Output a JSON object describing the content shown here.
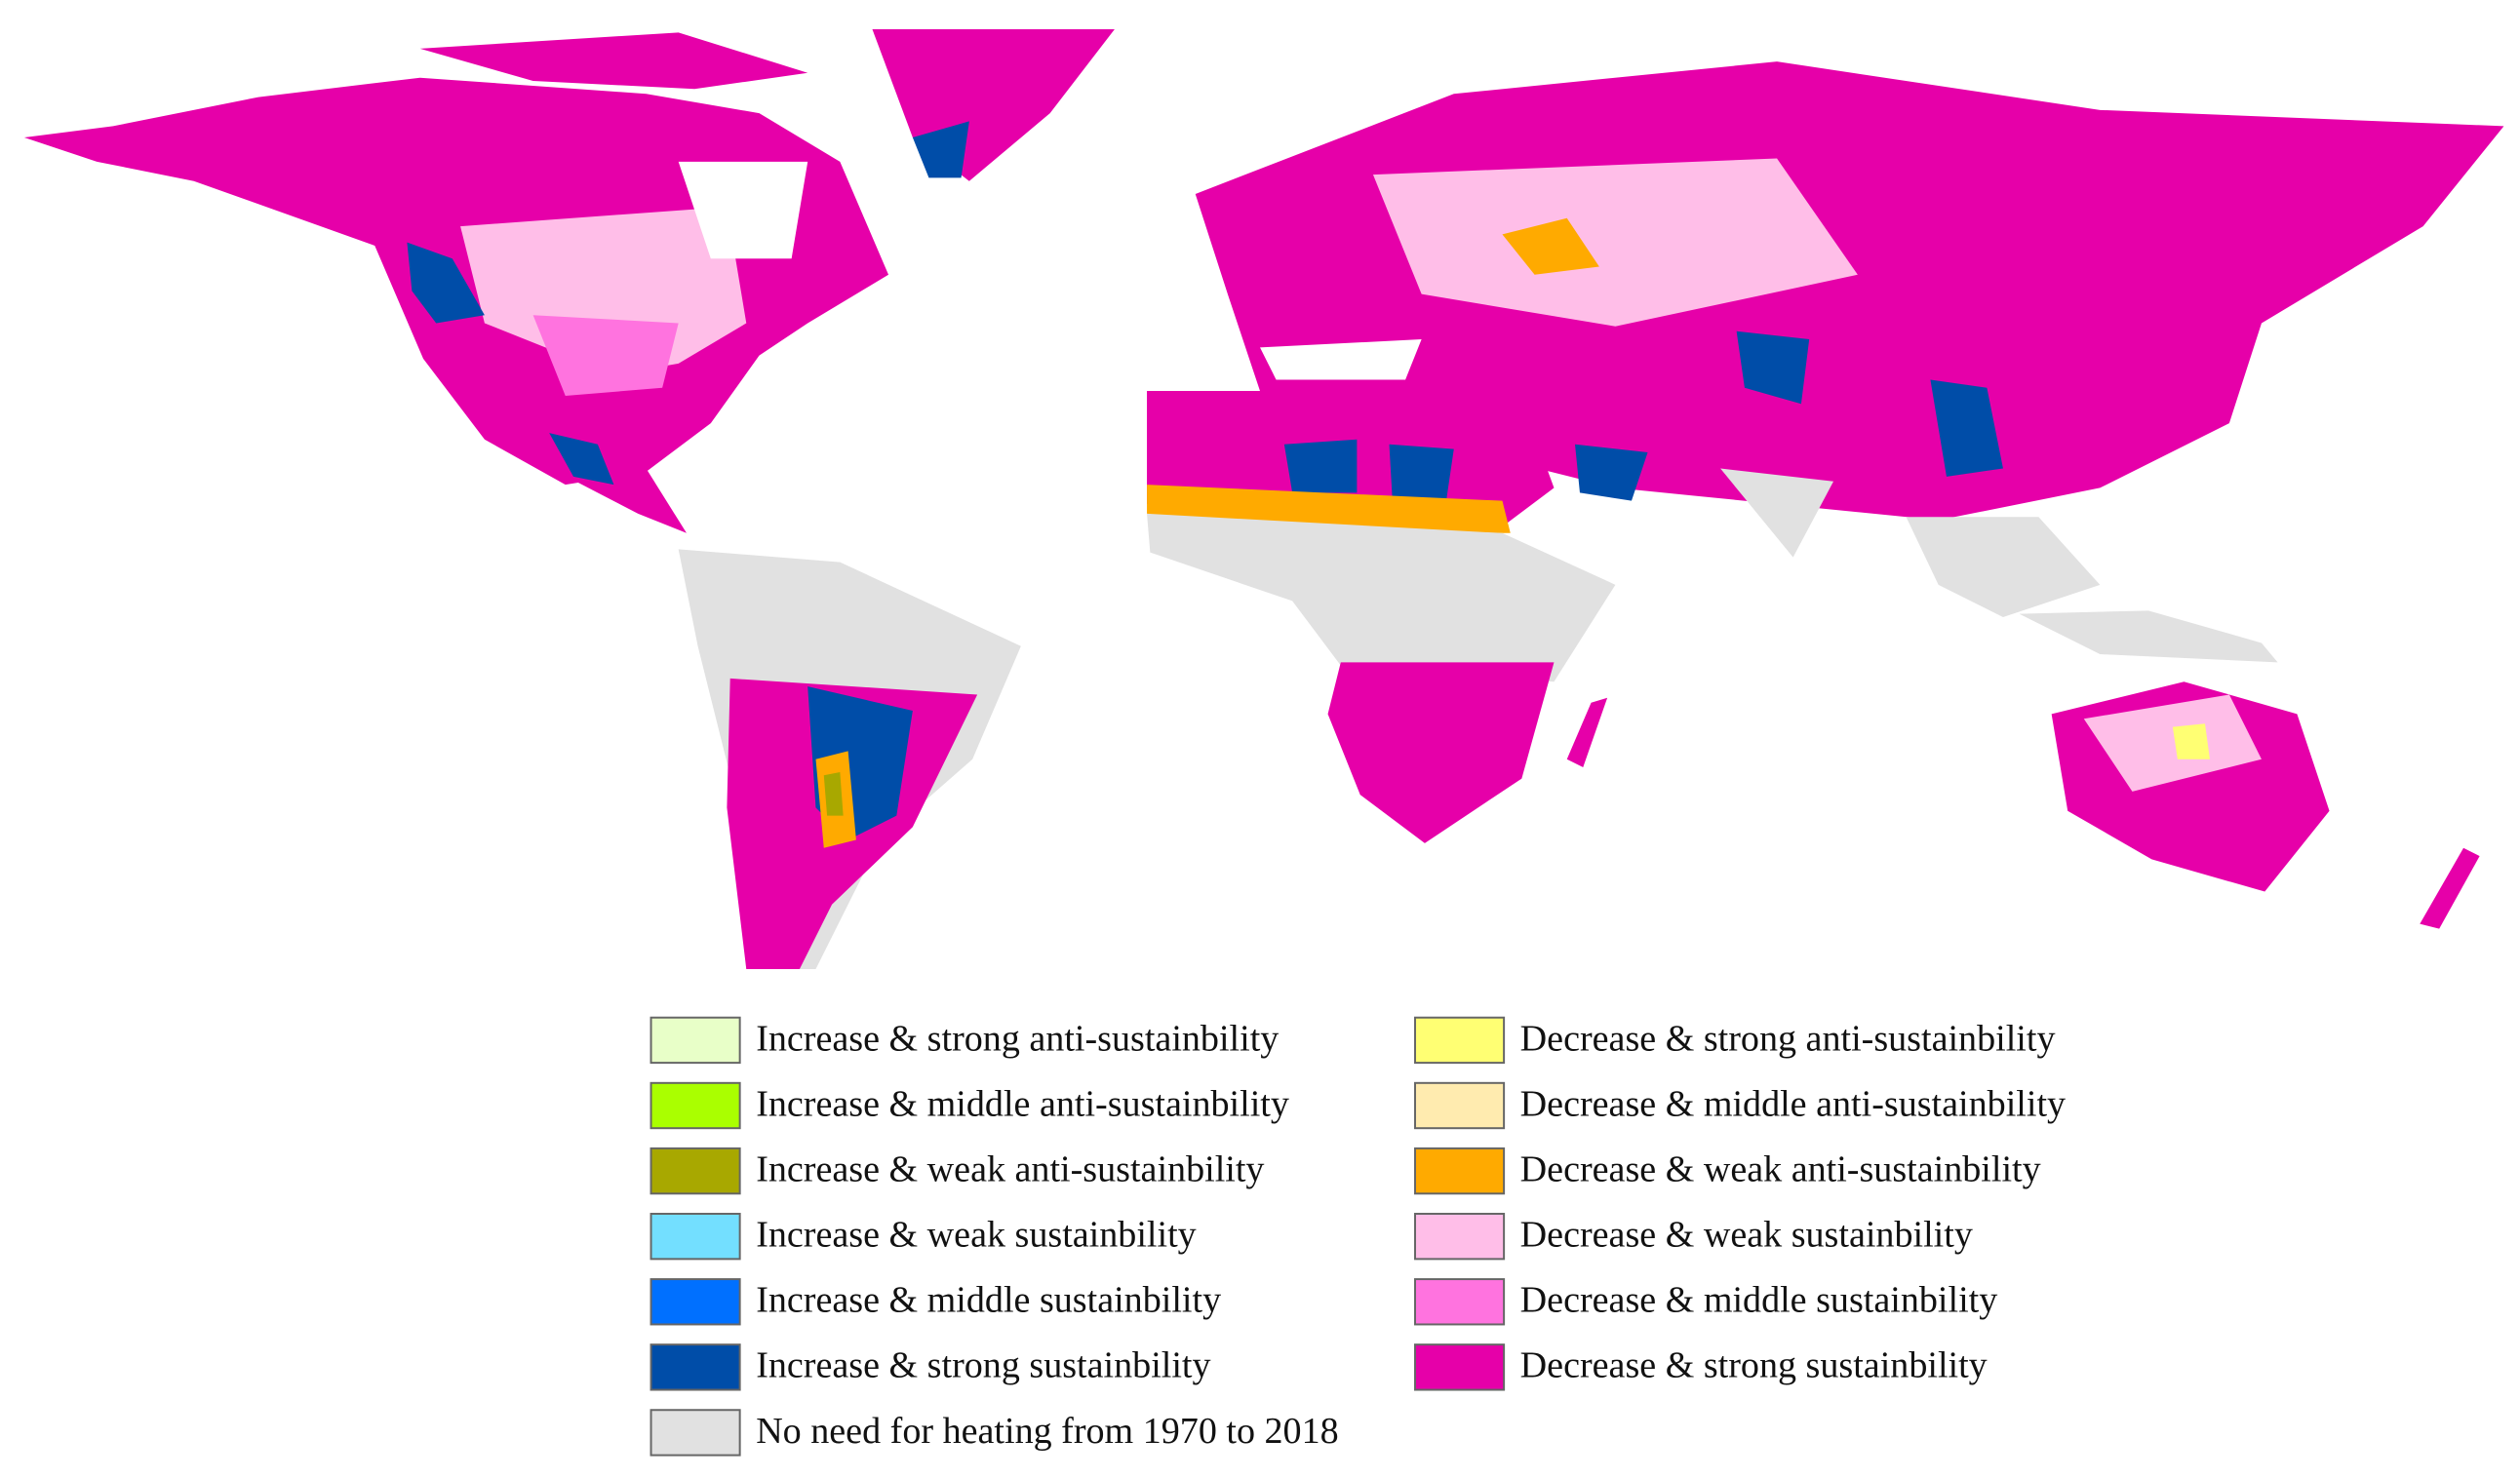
{
  "legend": {
    "items": [
      {
        "label": "Increase & strong anti-sustainbility",
        "color": "#e8ffc8"
      },
      {
        "label": "Decrease & strong anti-sustainbility",
        "color": "#ffff73"
      },
      {
        "label": "Increase & middle anti-sustainbility",
        "color": "#aaff00"
      },
      {
        "label": "Decrease & middle anti-sustainbility",
        "color": "#ffebaf"
      },
      {
        "label": "Increase & weak anti-sustainbility",
        "color": "#a8a800"
      },
      {
        "label": "Decrease & weak anti-sustainbility",
        "color": "#ffaa00"
      },
      {
        "label": "Increase & weak sustainbility",
        "color": "#73dfff"
      },
      {
        "label": "Decrease & weak sustainbility",
        "color": "#ffbee8"
      },
      {
        "label": "Increase & middle sustainbility",
        "color": "#0070ff"
      },
      {
        "label": "Decrease & middle sustainbility",
        "color": "#ff73df"
      },
      {
        "label": "Increase & strong sustainbility",
        "color": "#004da8"
      },
      {
        "label": "Decrease & strong sustainbility",
        "color": "#e600a9"
      },
      {
        "label": "No need for heating from 1970 to 2018",
        "color": "#e1e1e1"
      }
    ]
  }
}
